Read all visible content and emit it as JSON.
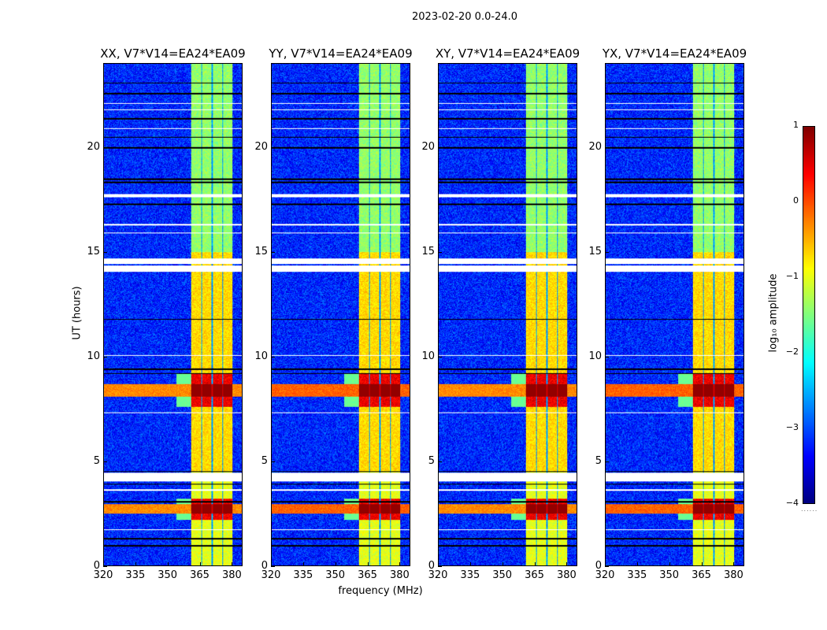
{
  "suptitle": "2023-02-20 0.0-24.0",
  "xlabel": "frequency (MHz)",
  "ylabel": "UT (hours)",
  "colorbar": {
    "label": "log₁₀ amplitude",
    "ticks": [
      "1",
      "0",
      "−1",
      "−2",
      "−3",
      "−4"
    ],
    "tick_values": [
      1,
      0,
      -1,
      -2,
      -3,
      -4
    ],
    "dots": "......"
  },
  "chart_data": {
    "type": "heatmap",
    "colormap": "jet",
    "clim": [
      -4,
      1
    ],
    "freq_range_mhz": [
      320,
      385
    ],
    "time_range_hours": [
      0,
      24
    ],
    "xticks": [
      320,
      335,
      350,
      365,
      380
    ],
    "xtick_labels": [
      "320",
      "335",
      "350",
      "365",
      "380"
    ],
    "yticks": [
      0,
      5,
      10,
      15,
      20
    ],
    "ytick_labels": [
      "0",
      "5",
      "10",
      "15",
      "20"
    ],
    "panels": [
      {
        "title": "XX, V7*V14=EA24*EA09",
        "seed": 11
      },
      {
        "title": "YY, V7*V14=EA24*EA09",
        "seed": 23
      },
      {
        "title": "XY, V7*V14=EA24*EA09",
        "seed": 37
      },
      {
        "title": "YX, V7*V14=EA24*EA09",
        "seed": 51
      }
    ],
    "background_level": -3.2,
    "rfi_channels_mhz": [
      [
        361,
        365.7
      ],
      [
        366.2,
        370.6
      ],
      [
        371.1,
        375.6
      ],
      [
        376.1,
        380.5
      ]
    ],
    "rfi_level": -1.0,
    "strong_intervals_hours": [
      [
        2.2,
        3.2
      ],
      [
        7.6,
        9.2
      ]
    ],
    "broadband_intervals_hours": [
      [
        2.5,
        2.95
      ],
      [
        8.1,
        8.7
      ]
    ],
    "flagged_intervals_hours": [
      [
        4.05,
        4.45
      ],
      [
        14.05,
        14.35
      ],
      [
        14.45,
        14.7
      ],
      [
        17.65,
        17.8
      ],
      [
        3.6,
        3.65
      ],
      [
        1.7,
        1.75
      ],
      [
        7.3,
        7.35
      ],
      [
        10.05,
        10.1
      ],
      [
        15.9,
        15.95
      ],
      [
        16.3,
        16.35
      ],
      [
        21.8,
        21.85
      ],
      [
        22.1,
        22.15
      ],
      [
        20.9,
        20.95
      ],
      [
        6.35,
        6.38
      ]
    ],
    "dropout_lines_hours": [
      0.95,
      1.3,
      3.05,
      3.9,
      4.5,
      9.2,
      9.4,
      11.8,
      17.3,
      18.35,
      18.5,
      20.0,
      20.5,
      21.4,
      22.6,
      23.1
    ]
  }
}
